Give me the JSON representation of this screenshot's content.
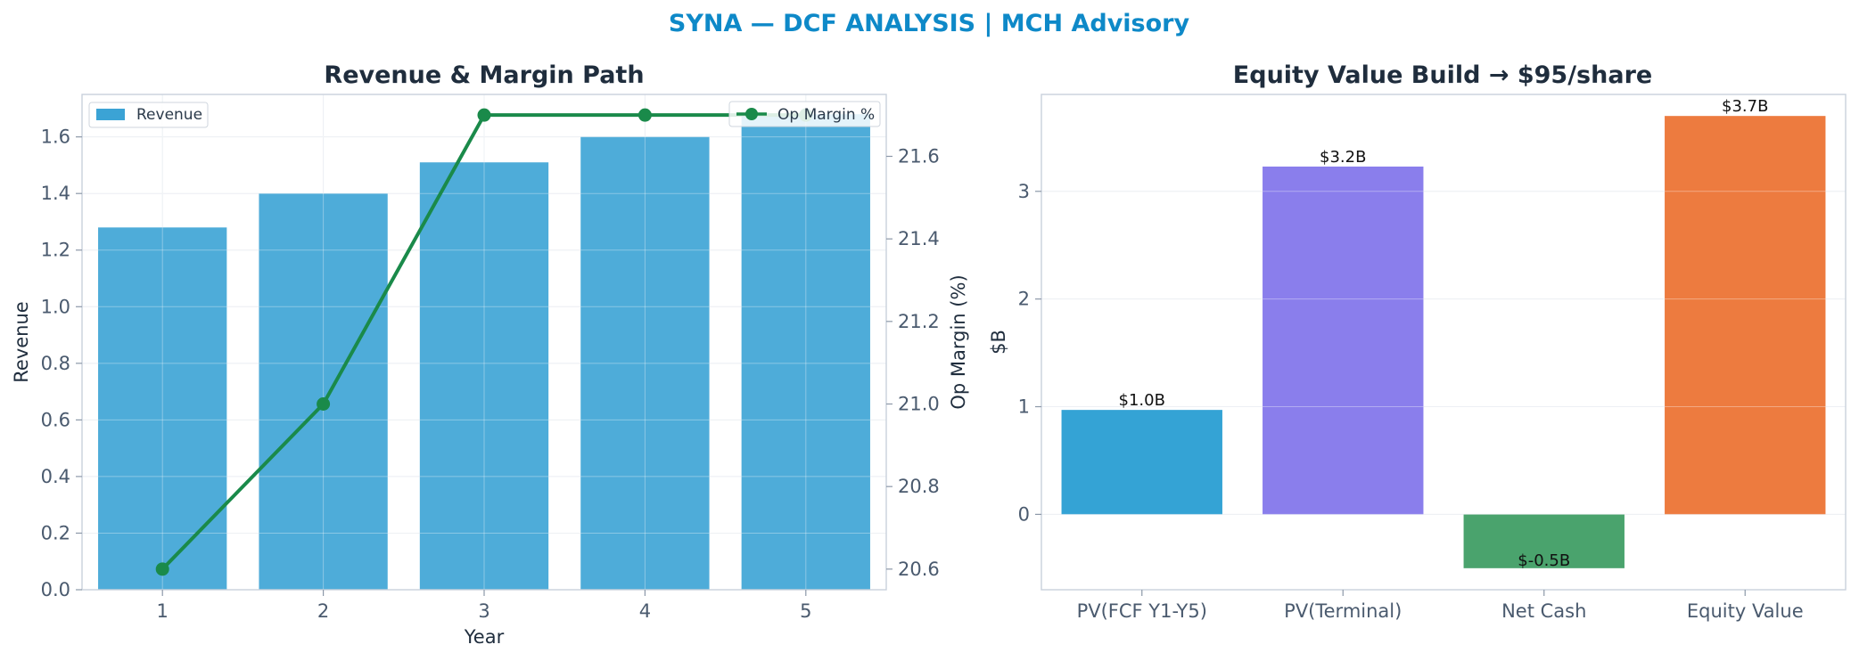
{
  "suptitle": "SYNA — DCF ANALYSIS | MCH Advisory",
  "chart_data": [
    {
      "type": "bar+line",
      "title": "Revenue & Margin Path",
      "xlabel": "Year",
      "ylabel": "Revenue",
      "y2label": "Op Margin (%)",
      "categories": [
        "1",
        "2",
        "3",
        "4",
        "5"
      ],
      "ylim": [
        0,
        1.75
      ],
      "yticks": [
        "0.0",
        "0.2",
        "0.4",
        "0.6",
        "0.8",
        "1.0",
        "1.2",
        "1.4",
        "1.6"
      ],
      "y2lim": [
        20.55,
        21.75
      ],
      "y2ticks": [
        "20.6",
        "20.8",
        "21.0",
        "21.2",
        "21.4",
        "21.6"
      ],
      "grid": true,
      "series": [
        {
          "name": "Revenue",
          "kind": "bar",
          "color": "#3ba3d5",
          "values": [
            1.28,
            1.4,
            1.51,
            1.6,
            1.68
          ]
        },
        {
          "name": "Op Margin %",
          "kind": "line",
          "axis": "right",
          "color": "#1a8a4a",
          "values": [
            20.6,
            21.0,
            21.7,
            21.7,
            21.7
          ]
        }
      ],
      "legend": [
        "top-left",
        "top-right"
      ]
    },
    {
      "type": "bar",
      "title": "Equity Value Build → $95/share",
      "ylabel": "$B",
      "categories": [
        "PV(FCF Y1-Y5)",
        "PV(Terminal)",
        "Net Cash",
        "Equity Value"
      ],
      "values": [
        0.97,
        3.23,
        -0.5,
        3.7
      ],
      "data_labels": [
        "$1.0B",
        "$3.2B",
        "$-0.5B",
        "$3.7B"
      ],
      "colors": [
        "#34a3d5",
        "#8a7eec",
        "#4aa36d",
        "#ed7b3f"
      ],
      "ylim": [
        -0.7,
        3.9
      ],
      "yticks": [
        "0",
        "1",
        "2",
        "3"
      ],
      "grid": true
    }
  ]
}
